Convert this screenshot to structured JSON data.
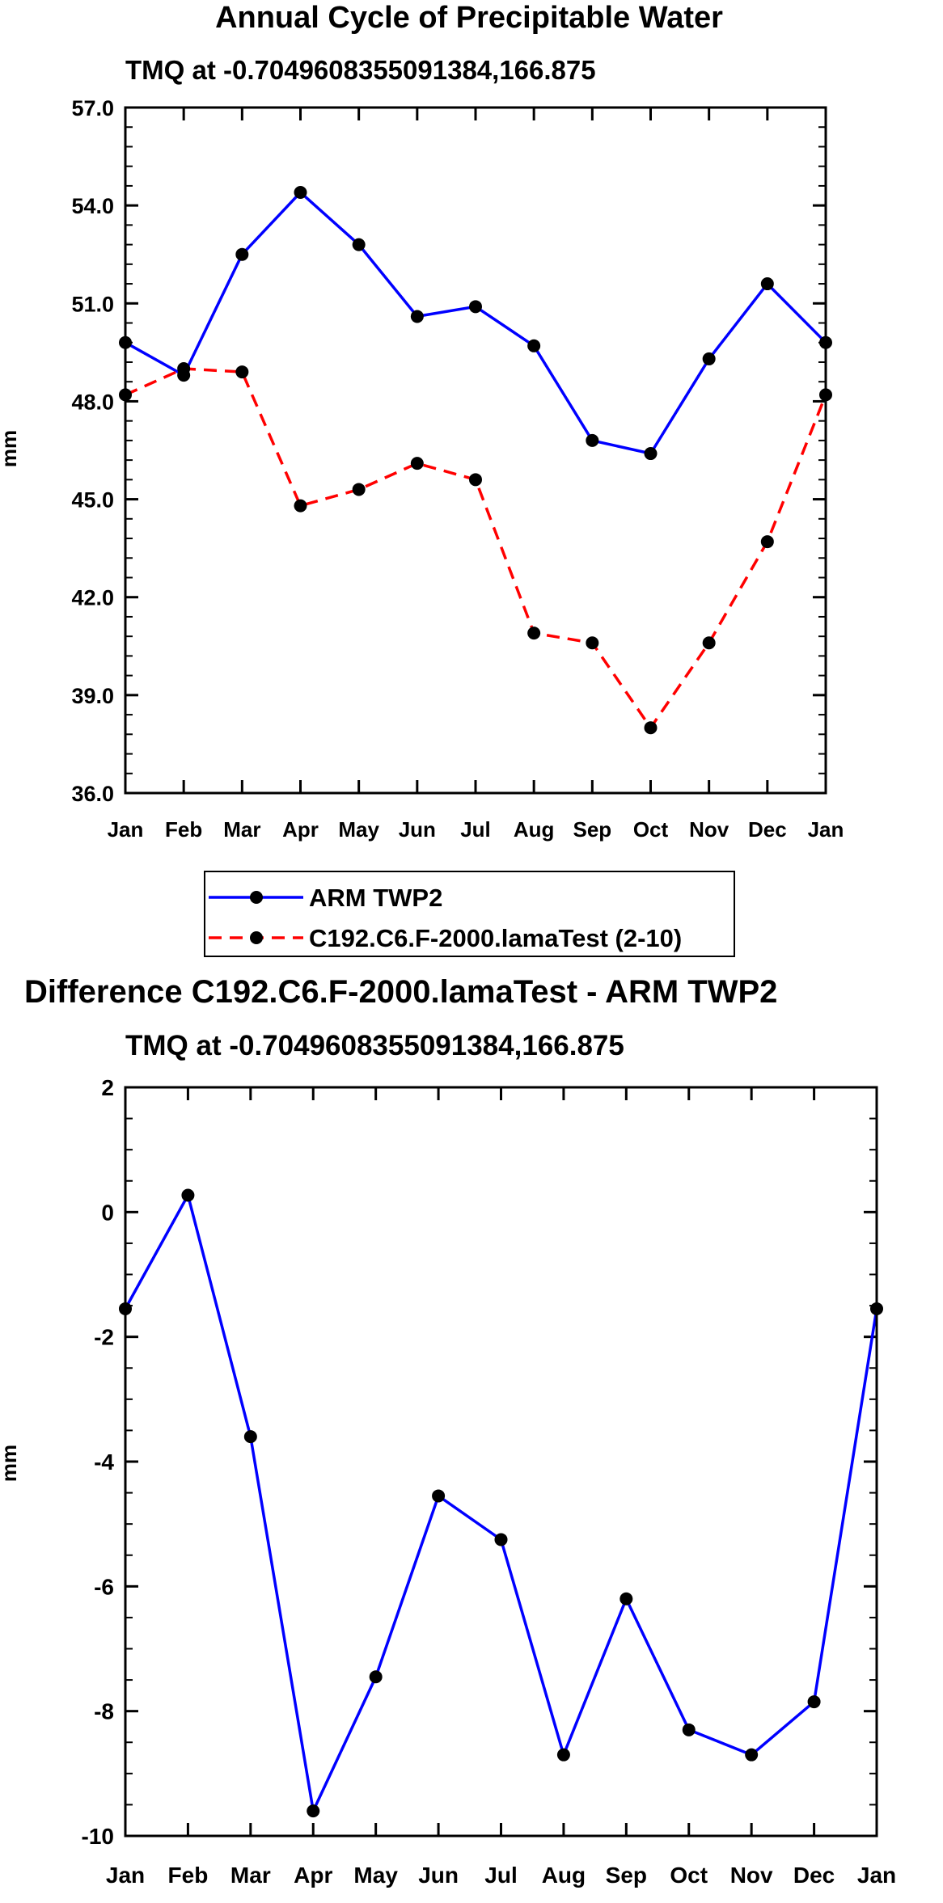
{
  "colors": {
    "model": "#ff0000",
    "observation": "#0000ff",
    "difference": "#0000ff",
    "axes": "#000000",
    "marker": "#000000"
  },
  "chart_data": [
    {
      "type": "line",
      "title": "Annual Cycle of Precipitable Water",
      "subtitle": "TMQ at -0.7049608355091384,166.875",
      "xlabel": "",
      "ylabel": "mm",
      "categories": [
        "Jan",
        "Feb",
        "Mar",
        "Apr",
        "May",
        "Jun",
        "Jul",
        "Aug",
        "Sep",
        "Oct",
        "Nov",
        "Dec",
        "Jan"
      ],
      "ylim": [
        36.0,
        57.0
      ],
      "yticks": [
        "36.0",
        "39.0",
        "42.0",
        "45.0",
        "48.0",
        "51.0",
        "54.0",
        "57.0"
      ],
      "grid": false,
      "legend_position": "below",
      "series": [
        {
          "name": "ARM TWP2",
          "style": "solid",
          "color": "#0000ff",
          "values": [
            49.8,
            48.8,
            52.5,
            54.4,
            52.8,
            50.6,
            50.9,
            49.7,
            46.8,
            46.4,
            49.3,
            51.6,
            49.8
          ]
        },
        {
          "name": "C192.C6.F-2000.lamaTest (2-10)",
          "style": "dashed",
          "color": "#ff0000",
          "values": [
            48.2,
            49.0,
            48.9,
            44.8,
            45.3,
            46.1,
            45.6,
            40.9,
            40.6,
            38.0,
            40.6,
            43.7,
            48.2
          ]
        }
      ]
    },
    {
      "type": "line",
      "title": "Difference C192.C6.F-2000.lamaTest - ARM TWP2",
      "subtitle": "TMQ at -0.7049608355091384,166.875",
      "xlabel": "",
      "ylabel": "mm",
      "categories": [
        "Jan",
        "Feb",
        "Mar",
        "Apr",
        "May",
        "Jun",
        "Jul",
        "Aug",
        "Sep",
        "Oct",
        "Nov",
        "Dec",
        "Jan"
      ],
      "ylim": [
        -10,
        2
      ],
      "yticks": [
        "-10",
        "-8",
        "-6",
        "-4",
        "-2",
        "0",
        "2"
      ],
      "grid": false,
      "series": [
        {
          "name": "Difference",
          "style": "solid",
          "color": "#0000ff",
          "values": [
            -1.55,
            0.27,
            -3.6,
            -9.6,
            -7.45,
            -4.55,
            -5.25,
            -8.7,
            -6.2,
            -8.3,
            -8.7,
            -7.85,
            -1.55
          ]
        }
      ]
    }
  ]
}
